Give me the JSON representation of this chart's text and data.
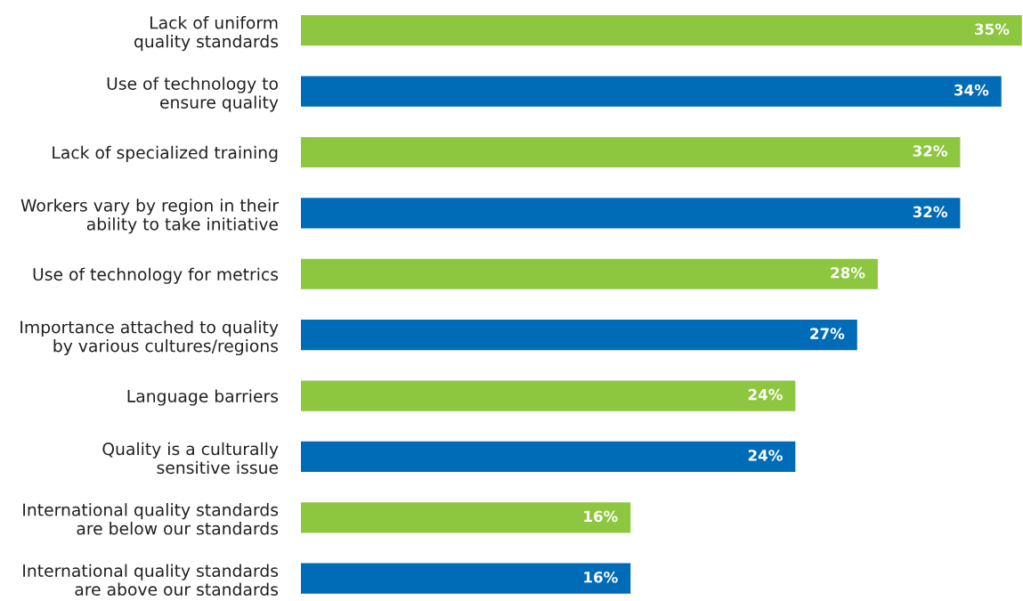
{
  "chart_data": {
    "type": "bar",
    "orientation": "horizontal",
    "categories": [
      "Lack of uniform\nquality standards",
      "Use of technology to\nensure quality",
      "Lack of specialized training",
      "Workers vary by region in their\nability to take initiative",
      "Use of technology for metrics",
      "Importance attached to quality\nby various cultures/regions",
      "Language barriers",
      "Quality is a culturally\nsensitive issue",
      "International quality standards\nare below our standards",
      "International quality standards\nare above our standards"
    ],
    "values": [
      35,
      34,
      32,
      32,
      28,
      27,
      24,
      24,
      16,
      16
    ],
    "colors": [
      "#8dc63f",
      "#006bb6",
      "#8dc63f",
      "#006bb6",
      "#8dc63f",
      "#006bb6",
      "#8dc63f",
      "#006bb6",
      "#8dc63f",
      "#006bb6"
    ],
    "value_labels": [
      "35%",
      "34%",
      "32%",
      "32%",
      "28%",
      "27%",
      "24%",
      "24%",
      "16%",
      "16%"
    ],
    "tick_labels": "y",
    "grid": false,
    "legend": false
  }
}
